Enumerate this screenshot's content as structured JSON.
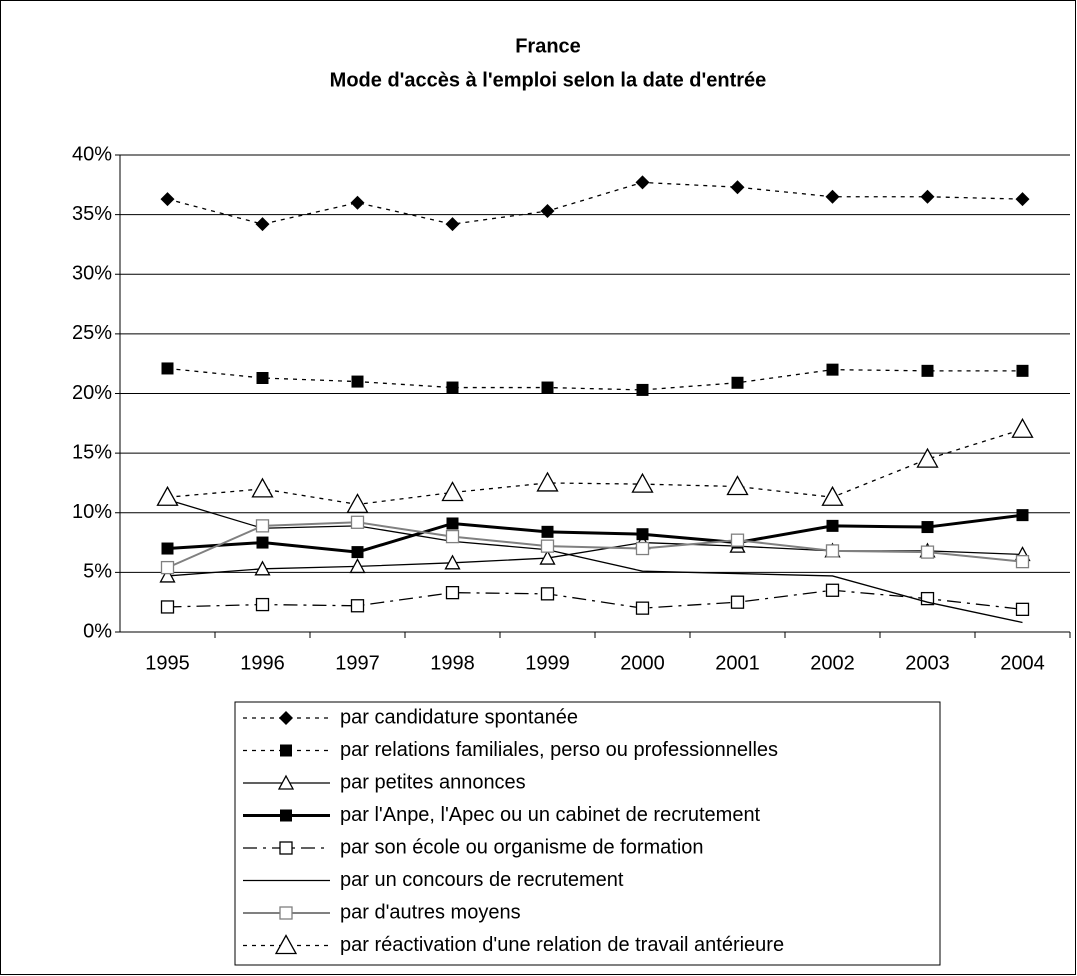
{
  "chart_data": {
    "type": "line",
    "title": "France",
    "subtitle": "Mode d'accès à l'emploi selon la date d'entrée",
    "categories": [
      "1995",
      "1996",
      "1997",
      "1998",
      "1999",
      "2000",
      "2001",
      "2002",
      "2003",
      "2004"
    ],
    "ylim": [
      0,
      40
    ],
    "yticks": [
      {
        "value": 0,
        "label": "0%"
      },
      {
        "value": 5,
        "label": "5%"
      },
      {
        "value": 10,
        "label": "10%"
      },
      {
        "value": 15,
        "label": "15%"
      },
      {
        "value": 20,
        "label": "20%"
      },
      {
        "value": 25,
        "label": "25%"
      },
      {
        "value": 30,
        "label": "30%"
      },
      {
        "value": 35,
        "label": "35%"
      },
      {
        "value": 40,
        "label": "40%"
      }
    ],
    "grid": true,
    "series": [
      {
        "name": "par candidature spontanée",
        "color": "#000000",
        "dash": "4 5",
        "width": 1.3,
        "marker": "diamond",
        "values": [
          36.3,
          34.2,
          36.0,
          34.2,
          35.3,
          37.7,
          37.3,
          36.5,
          36.5,
          36.3
        ]
      },
      {
        "name": "par relations familiales, perso ou professionnelles",
        "color": "#000000",
        "dash": "4 5",
        "width": 1.3,
        "marker": "square",
        "values": [
          22.1,
          21.3,
          21.0,
          20.5,
          20.5,
          20.3,
          20.9,
          22.0,
          21.9,
          21.9
        ]
      },
      {
        "name": "par petites annonces",
        "color": "#000000",
        "dash": "none",
        "width": 1.3,
        "marker": "triangle",
        "values": [
          4.7,
          5.3,
          5.5,
          5.8,
          6.2,
          7.5,
          7.2,
          6.8,
          6.8,
          6.5
        ]
      },
      {
        "name": "par l'Anpe, l'Apec ou un cabinet de recrutement",
        "color": "#000000",
        "dash": "none",
        "width": 3,
        "marker": "square",
        "values": [
          7.0,
          7.5,
          6.7,
          9.1,
          8.4,
          8.2,
          7.5,
          8.9,
          8.8,
          9.8
        ]
      },
      {
        "name": "par son école ou organisme de formation",
        "color": "#000000",
        "dash": "14 6 3 6",
        "width": 1.3,
        "marker": "open-square",
        "values": [
          2.1,
          2.3,
          2.2,
          3.3,
          3.2,
          2.0,
          2.5,
          3.5,
          2.8,
          1.9
        ]
      },
      {
        "name": "par un concours de recrutement",
        "color": "#000000",
        "dash": "none",
        "width": 1.3,
        "marker": "none",
        "values": [
          11.1,
          8.7,
          8.9,
          7.6,
          6.9,
          5.1,
          4.9,
          4.7,
          2.5,
          0.8
        ]
      },
      {
        "name": "par d'autres moyens",
        "color": "#808080",
        "dash": "none",
        "width": 2,
        "marker": "open-square",
        "values": [
          5.4,
          8.9,
          9.2,
          8.0,
          7.2,
          7.0,
          7.7,
          6.8,
          6.7,
          5.9
        ]
      },
      {
        "name": "par réactivation d'une relation de travail antérieure",
        "color": "#000000",
        "dash": "4 5",
        "width": 1.3,
        "marker": "big-triangle",
        "values": [
          11.3,
          12.0,
          10.7,
          11.7,
          12.5,
          12.4,
          12.2,
          11.3,
          14.5,
          17.0
        ]
      }
    ]
  }
}
